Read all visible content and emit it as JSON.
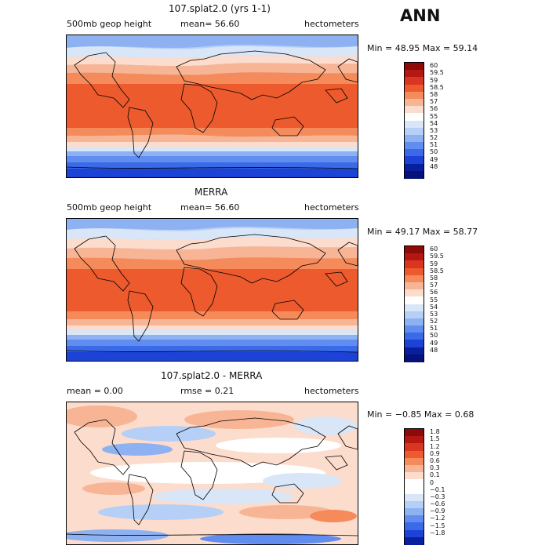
{
  "season": "ANN",
  "panels": [
    {
      "id": "model",
      "title": "107.splat2.0 (yrs 1-1)",
      "left_label": "500mb geop height",
      "center_label": "mean=  56.60",
      "right_label": "hectometers",
      "minmax": "Min =  48.95 Max =  59.14",
      "colorbar_labels": [
        "60",
        "59.5",
        "59",
        "58.5",
        "58",
        "57",
        "56",
        "55",
        "54",
        "53",
        "52",
        "51",
        "50",
        "49",
        "48"
      ],
      "colorbar_colors": [
        "#8c0a08",
        "#b51812",
        "#d93520",
        "#ec5a2e",
        "#f58a5a",
        "#f8b596",
        "#fcdccc",
        "#ffffff",
        "#d8e6f8",
        "#b6cff6",
        "#8eb1f2",
        "#628df0",
        "#3b6ae8",
        "#1c42d6",
        "#0a1f9e",
        "#06127a"
      ]
    },
    {
      "id": "obs",
      "title": "MERRA",
      "left_label": "500mb geop height",
      "center_label": "mean=  56.60",
      "right_label": "hectometers",
      "minmax": "Min =  49.17 Max =  58.77",
      "colorbar_labels": [
        "60",
        "59.5",
        "59",
        "58.5",
        "58",
        "57",
        "56",
        "55",
        "54",
        "53",
        "52",
        "51",
        "50",
        "49",
        "48"
      ],
      "colorbar_colors": [
        "#8c0a08",
        "#b51812",
        "#d93520",
        "#ec5a2e",
        "#f58a5a",
        "#f8b596",
        "#fcdccc",
        "#ffffff",
        "#d8e6f8",
        "#b6cff6",
        "#8eb1f2",
        "#628df0",
        "#3b6ae8",
        "#1c42d6",
        "#0a1f9e",
        "#06127a"
      ]
    },
    {
      "id": "diff",
      "title": "107.splat2.0 - MERRA",
      "left_label": "mean =   0.00",
      "center_label": "rmse =   0.21",
      "right_label": "hectometers",
      "minmax": "Min =  −0.85 Max =   0.68",
      "colorbar_labels": [
        "1.8",
        "1.5",
        "1.2",
        "0.9",
        "0.6",
        "0.3",
        "0.1",
        "0",
        "−0.1",
        "−0.3",
        "−0.6",
        "−0.9",
        "−1.2",
        "−1.5",
        "−1.8"
      ],
      "colorbar_colors": [
        "#8c0a08",
        "#b51812",
        "#d93520",
        "#ec5a2e",
        "#f58a5a",
        "#f8b596",
        "#fcdccc",
        "#ffffff",
        "#ffffff",
        "#d8e6f8",
        "#b6cff6",
        "#8eb1f2",
        "#628df0",
        "#3b6ae8",
        "#1c42d6",
        "#0a1f9e"
      ]
    }
  ]
}
